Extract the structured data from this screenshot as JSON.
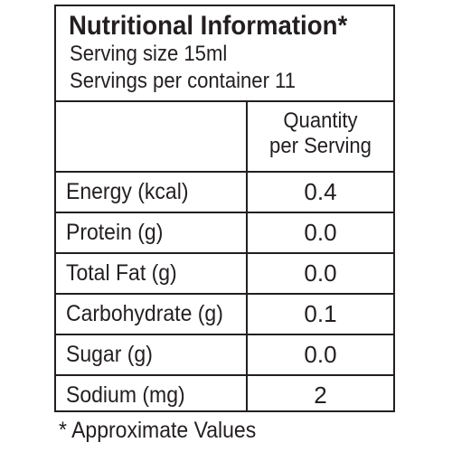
{
  "panel": {
    "title": "Nutritional Information*",
    "serving_size": "Serving size 15ml",
    "servings_per_container": "Servings per container 11",
    "column_header": {
      "line1": "Quantity",
      "line2": "per Serving"
    },
    "rows": [
      {
        "label": "Energy (kcal)",
        "value": "0.4"
      },
      {
        "label": "Protein (g)",
        "value": "0.0"
      },
      {
        "label": "Total Fat (g)",
        "value": "0.0"
      },
      {
        "label": "Carbohydrate (g)",
        "value": "0.1"
      },
      {
        "label": "Sugar (g)",
        "value": "0.0"
      },
      {
        "label": "Sodium (mg)",
        "value": "2"
      }
    ]
  },
  "footnote": "* Approximate Values"
}
